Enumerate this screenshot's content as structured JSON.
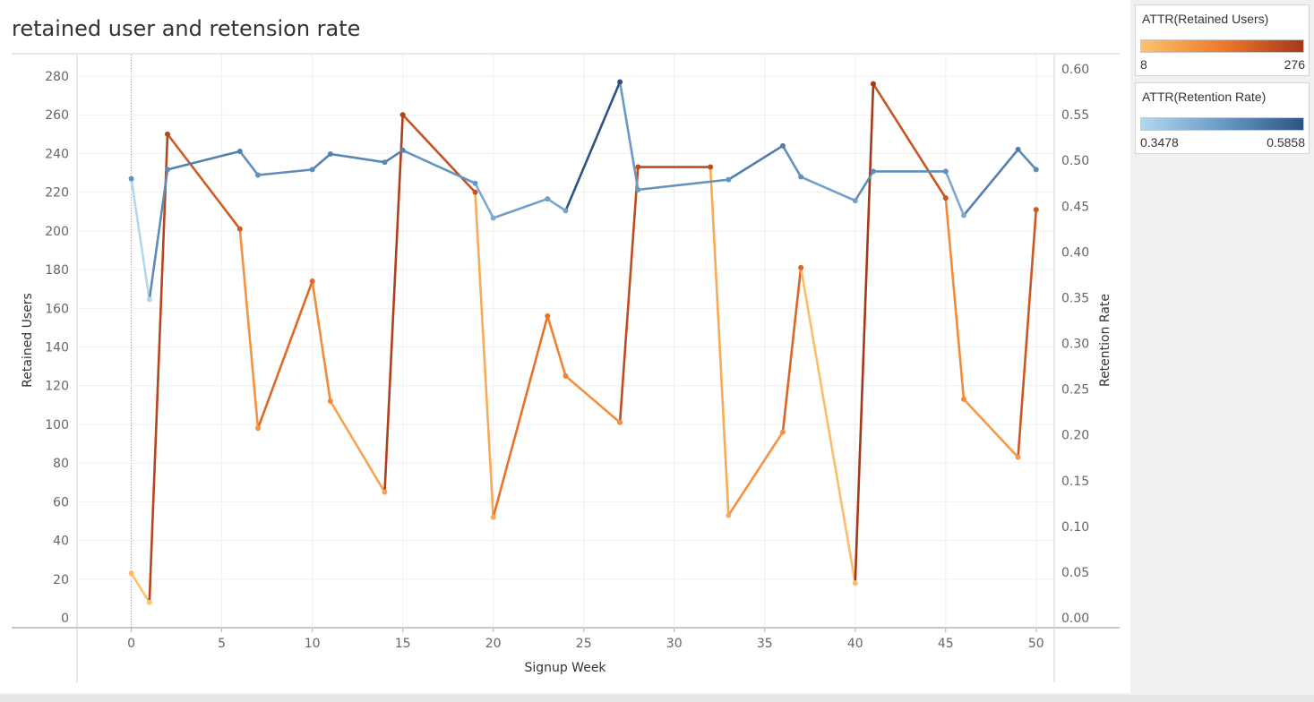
{
  "title": "retained user and retension rate",
  "legend_retained": {
    "title": "ATTR(Retained Users)",
    "min": "8",
    "max": "276",
    "colors": [
      "#fdc26e",
      "#ee7a2a",
      "#a6381a"
    ]
  },
  "legend_rate": {
    "title": "ATTR(Retention Rate)",
    "min": "0.3478",
    "max": "0.5858",
    "colors": [
      "#b3d7ef",
      "#6a9ac5",
      "#2c5483"
    ]
  },
  "chart_data": {
    "type": "line",
    "xlabel": "Signup Week",
    "ylabel_left": "Retained Users",
    "ylabel_right": "Retention Rate",
    "xlim": [
      -3,
      51
    ],
    "x_ticks": [
      0,
      5,
      10,
      15,
      20,
      25,
      30,
      35,
      40,
      45,
      50
    ],
    "ylim_left": [
      0,
      280
    ],
    "y_ticks_left": [
      0,
      20,
      40,
      60,
      80,
      100,
      120,
      140,
      160,
      180,
      200,
      220,
      240,
      260,
      280
    ],
    "ylim_right": [
      0,
      0.6
    ],
    "y_ticks_right": [
      "0.00",
      "0.05",
      "0.10",
      "0.15",
      "0.20",
      "0.25",
      "0.30",
      "0.35",
      "0.40",
      "0.45",
      "0.50",
      "0.55",
      "0.60"
    ],
    "grid": true,
    "series": [
      {
        "name": "Retained Users",
        "axis": "left",
        "color_range": [
          8,
          276
        ],
        "x": [
          0,
          1,
          2,
          6,
          7,
          10,
          11,
          14,
          15,
          19,
          20,
          23,
          24,
          27,
          28,
          32,
          33,
          36,
          37,
          40,
          41,
          45,
          46,
          49,
          50
        ],
        "y": [
          23,
          8,
          250,
          201,
          98,
          174,
          112,
          65,
          260,
          220,
          52,
          156,
          125,
          101,
          233,
          233,
          53,
          96,
          181,
          18,
          276,
          217,
          113,
          83,
          211
        ]
      },
      {
        "name": "Retention Rate",
        "axis": "right",
        "color_range": [
          0.3478,
          0.5858
        ],
        "x": [
          0,
          1,
          2,
          6,
          7,
          10,
          11,
          14,
          15,
          19,
          20,
          23,
          24,
          27,
          28,
          33,
          36,
          37,
          40,
          41,
          45,
          46,
          49,
          50
        ],
        "y": [
          0.48,
          0.348,
          0.49,
          0.51,
          0.484,
          0.49,
          0.507,
          0.498,
          0.511,
          0.475,
          0.437,
          0.458,
          0.445,
          0.5858,
          0.468,
          0.479,
          0.516,
          0.482,
          0.456,
          0.488,
          0.488,
          0.44,
          0.512,
          0.49
        ]
      }
    ]
  }
}
